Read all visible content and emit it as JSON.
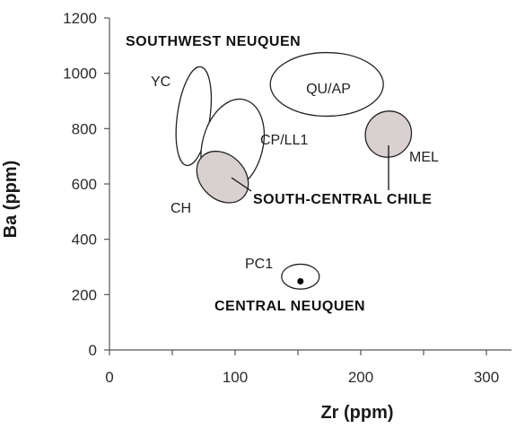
{
  "chart_data": {
    "type": "scatter",
    "xlabel": "Zr (ppm)",
    "ylabel": "Ba (ppm)",
    "xlim": [
      0,
      320
    ],
    "ylim": [
      0,
      1200
    ],
    "x_ticks": [
      0,
      100,
      200,
      300
    ],
    "y_ticks": [
      0,
      200,
      400,
      600,
      800,
      1000,
      1200
    ],
    "grid": false,
    "fields": [
      {
        "label": "YC",
        "cx": 67,
        "cy": 845,
        "rx": 13,
        "ry": 180,
        "rotation_deg": 8,
        "fill": "#ffffff"
      },
      {
        "label": "CP/LL1",
        "cx": 98,
        "cy": 740,
        "rx": 24,
        "ry": 170,
        "rotation_deg": 15,
        "fill": "#ffffff"
      },
      {
        "label": "QU/AP",
        "cx": 173,
        "cy": 960,
        "rx": 45,
        "ry": 115,
        "rotation_deg": 0,
        "fill": "#ffffff"
      },
      {
        "label": "MEL",
        "cx": 222,
        "cy": 780,
        "rx": 18,
        "ry": 85,
        "rotation_deg": 45,
        "fill": "#d9d0d0"
      },
      {
        "label": "CH",
        "cx": 90,
        "cy": 625,
        "rx": 23,
        "ry": 80,
        "rotation_deg": 45,
        "fill": "#d9d0d0"
      },
      {
        "label": "PC1",
        "cx": 152,
        "cy": 265,
        "rx": 15,
        "ry": 45,
        "rotation_deg": 0,
        "fill": "#ffffff"
      }
    ],
    "points": [
      {
        "x": 152,
        "y": 248,
        "name": "CENTRAL NEUQUEN sample"
      }
    ],
    "region_labels": {
      "southwest": "SOUTHWEST NEUQUEN",
      "south_central": "SOUTH-CENTRAL CHILE",
      "central": "CENTRAL NEUQUEN"
    },
    "colors": {
      "axis": "#555555",
      "field_stroke": "#222222",
      "shaded_fill": "#d9d0d0",
      "point": "#000000"
    }
  }
}
